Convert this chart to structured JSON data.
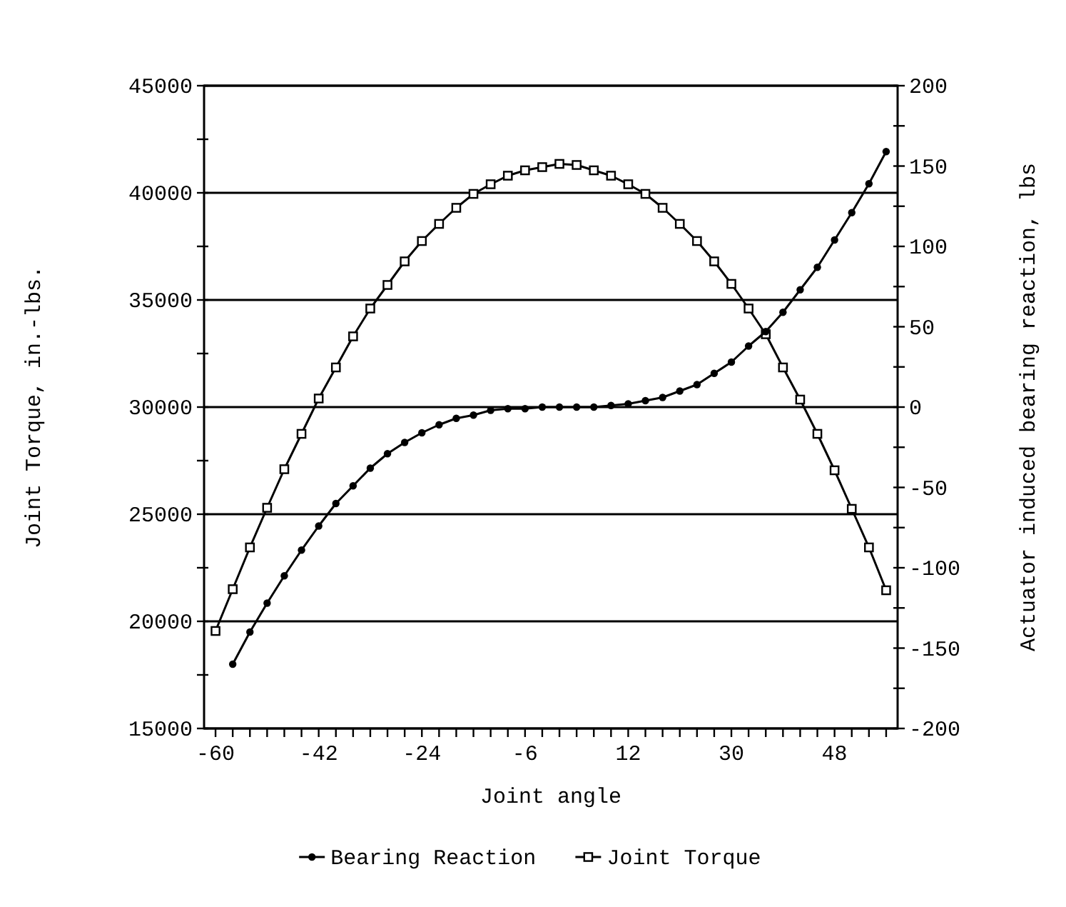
{
  "chart_data": {
    "type": "line",
    "xlabel": "Joint angle",
    "ylabel": "Joint Torque, in.-lbs.",
    "y2label": "Actuator induced bearing reaction, lbs",
    "x": [
      -60,
      -57,
      -54,
      -51,
      -48,
      -45,
      -42,
      -39,
      -36,
      -33,
      -30,
      -27,
      -24,
      -21,
      -18,
      -15,
      -12,
      -9,
      -6,
      -3,
      0,
      3,
      6,
      9,
      12,
      15,
      18,
      21,
      24,
      27,
      30,
      33,
      36,
      39,
      42,
      45,
      48,
      51,
      54,
      57
    ],
    "xlim": [
      -62,
      59
    ],
    "xticks": [
      -60,
      {
        "value": -57,
        "label": null
      },
      {
        "value": -54,
        "label": null
      },
      {
        "value": -51,
        "label": null
      },
      {
        "value": -48,
        "label": null
      },
      {
        "value": -45,
        "label": null
      },
      -42,
      {
        "value": -39,
        "label": null
      },
      {
        "value": -36,
        "label": null
      },
      {
        "value": -33,
        "label": null
      },
      {
        "value": -30,
        "label": null
      },
      {
        "value": -27,
        "label": null
      },
      -24,
      {
        "value": -21,
        "label": null
      },
      {
        "value": -18,
        "label": null
      },
      {
        "value": -15,
        "label": null
      },
      {
        "value": -12,
        "label": null
      },
      {
        "value": -9,
        "label": null
      },
      -6,
      {
        "value": -3,
        "label": null
      },
      {
        "value": 0,
        "label": null
      },
      {
        "value": 3,
        "label": null
      },
      {
        "value": 6,
        "label": null
      },
      {
        "value": 9,
        "label": null
      },
      12,
      {
        "value": 15,
        "label": null
      },
      {
        "value": 18,
        "label": null
      },
      {
        "value": 21,
        "label": null
      },
      {
        "value": 24,
        "label": null
      },
      {
        "value": 27,
        "label": null
      },
      30,
      {
        "value": 33,
        "label": null
      },
      {
        "value": 36,
        "label": null
      },
      {
        "value": 39,
        "label": null
      },
      {
        "value": 42,
        "label": null
      },
      {
        "value": 45,
        "label": null
      },
      48,
      {
        "value": 51,
        "label": null
      },
      {
        "value": 54,
        "label": null
      },
      {
        "value": 57,
        "label": null
      }
    ],
    "ylim": [
      15000,
      45000
    ],
    "yticks": [
      15000,
      {
        "value": 17500,
        "label": null
      },
      20000,
      {
        "value": 22500,
        "label": null
      },
      25000,
      {
        "value": 27500,
        "label": null
      },
      30000,
      {
        "value": 32500,
        "label": null
      },
      35000,
      {
        "value": 37500,
        "label": null
      },
      40000,
      {
        "value": 42500,
        "label": null
      },
      45000
    ],
    "y2lim": [
      -200,
      200
    ],
    "y2ticks": [
      -200,
      {
        "value": -175,
        "label": null
      },
      -150,
      {
        "value": -125,
        "label": null
      },
      -100,
      {
        "value": -75,
        "label": null
      },
      -50,
      {
        "value": -25,
        "label": null
      },
      0,
      {
        "value": 25,
        "label": null
      },
      50,
      {
        "value": 75,
        "label": null
      },
      100,
      {
        "value": 125,
        "label": null
      },
      150,
      {
        "value": 175,
        "label": null
      },
      200
    ],
    "grid": "y",
    "legend": "bottom",
    "series": [
      {
        "name": "Bearing Reaction",
        "color": "#000000",
        "axis": "y2",
        "marker": "circle",
        "values": [
          null,
          -160,
          -140,
          -122,
          -105,
          -89,
          -74,
          -60,
          -49,
          -38,
          -29,
          -22,
          -16,
          -11,
          -7,
          -5,
          -2,
          -1,
          -1,
          0,
          0,
          0,
          0,
          1,
          2,
          4,
          6,
          10,
          14,
          21,
          28,
          38,
          47,
          59,
          73,
          87,
          104,
          121,
          139,
          159
        ]
      },
      {
        "name": "Joint Torque",
        "color": "#000000",
        "marker": "square",
        "values": [
          19550,
          21500,
          23450,
          25300,
          27100,
          28750,
          30400,
          31850,
          33300,
          34600,
          35700,
          36800,
          37750,
          38550,
          39300,
          39950,
          40400,
          40800,
          41050,
          41200,
          41350,
          41300,
          41050,
          40800,
          40400,
          39950,
          39300,
          38550,
          37750,
          36800,
          35750,
          34600,
          33400,
          31850,
          30350,
          28750,
          27050,
          25250,
          23450,
          21450
        ]
      }
    ]
  }
}
